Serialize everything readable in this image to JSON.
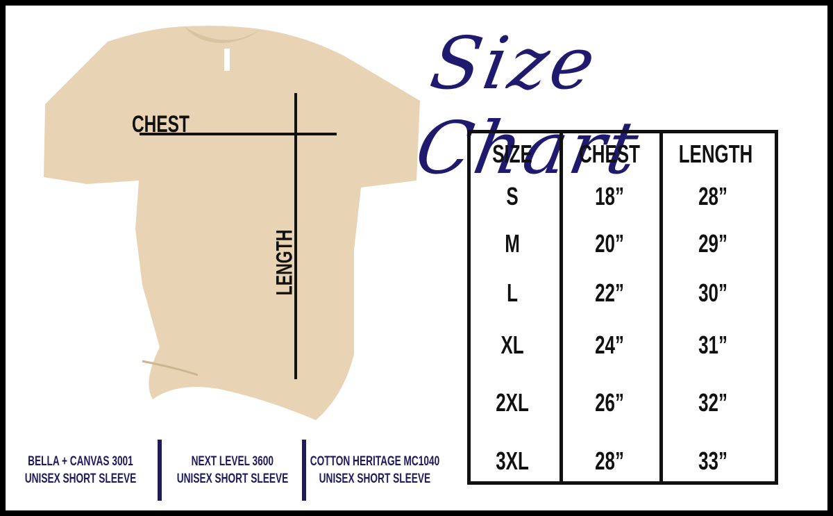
{
  "title": "Size Chart",
  "colors": {
    "navy": "#1f1a5e",
    "shirt": "#e8d4b4",
    "ink": "#111111"
  },
  "diagram": {
    "chest_label": "CHEST",
    "length_label": "LENGTH"
  },
  "table": {
    "headers": [
      "SIZE",
      "CHEST",
      "LENGTH"
    ],
    "rows": [
      [
        "S",
        "18”",
        "28”"
      ],
      [
        "M",
        "20”",
        "29”"
      ],
      [
        "L",
        "22”",
        "30”"
      ],
      [
        "XL",
        "24”",
        "31”"
      ],
      [
        "2XL",
        "26”",
        "32”"
      ],
      [
        "3XL",
        "28”",
        "33”"
      ]
    ]
  },
  "brands": [
    {
      "line1": "BELLA + CANVAS 3001",
      "line2": "UNISEX SHORT SLEEVE"
    },
    {
      "line1": "NEXT LEVEL 3600",
      "line2": "UNISEX SHORT SLEEVE"
    },
    {
      "line1": "COTTON HERITAGE MC1040",
      "line2": "UNISEX SHORT SLEEVE"
    }
  ]
}
